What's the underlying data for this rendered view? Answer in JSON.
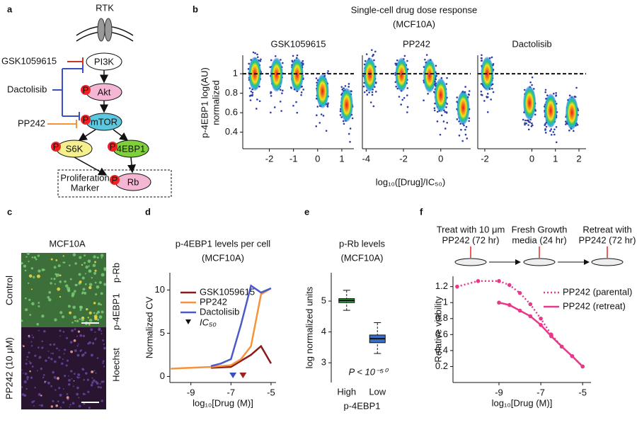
{
  "panel_labels": [
    "a",
    "b",
    "c",
    "d",
    "e",
    "f"
  ],
  "diagram": {
    "receptor": "RTK",
    "nodes": [
      "PI3K",
      "Akt",
      "mTOR",
      "S6K",
      "4EBP1",
      "Rb"
    ],
    "phospho": "P",
    "drugs": [
      "GSK1059615",
      "Dactolisib",
      "PP242"
    ],
    "marker_box": [
      "Proliferation",
      "Marker"
    ]
  },
  "microscopy": {
    "title": "MCF10A",
    "rows": [
      "Control",
      "PP242 (10 μM)"
    ],
    "channels": [
      "p-Rb",
      "p-4EBP1",
      "Hoechst"
    ]
  },
  "panel_b": {
    "title": "Single-cell drug dose response",
    "subtitle": "(MCF10A)",
    "y_label": "p-4EBP1 log(AU)",
    "y_label_2": "normalized",
    "x_label": "log₁₀([Drug]/IC₅₀)"
  },
  "schedule": {
    "steps": [
      [
        "Treat with 10 μm",
        "PP242 (72 hr)"
      ],
      [
        "Fresh Growth",
        "media (24 hr)"
      ],
      [
        "Retreat with",
        "PP242 (72 hr)"
      ]
    ]
  },
  "chart_data": [
    {
      "type": "strip",
      "title": "GSK1059615",
      "x": [
        -2.6,
        -1.7,
        -0.85,
        0.2,
        1.2
      ],
      "values": [
        1.0,
        0.99,
        0.99,
        0.82,
        0.68
      ],
      "xlim": [
        -3.1,
        1.5
      ],
      "xticks": [
        -2,
        -1,
        0,
        1
      ],
      "ylim": [
        0.23,
        1.19
      ],
      "yticks": [
        0.4,
        0.6,
        0.8,
        1
      ],
      "hline": 1
    },
    {
      "type": "strip",
      "title": "PP242",
      "x": [
        -3.8,
        -2.1,
        -0.6,
        0,
        1.2
      ],
      "values": [
        0.99,
        0.99,
        0.98,
        0.78,
        0.65
      ],
      "xlim": [
        -4.2,
        1.6
      ],
      "xticks": [
        -4,
        -2,
        0
      ],
      "ylim": [
        0.23,
        1.19
      ],
      "hline": 1
    },
    {
      "type": "strip",
      "title": "Dactolisib",
      "x": [
        -1.9,
        -0.1,
        0.8,
        1.7
      ],
      "values": [
        1.0,
        0.7,
        0.62,
        0.6
      ],
      "xlim": [
        -2.3,
        2.3
      ],
      "xticks": [
        -2,
        0,
        1,
        2
      ],
      "ylim": [
        0.23,
        1.19
      ],
      "hline": 1
    },
    {
      "type": "line",
      "title": "p-4EBP1 levels per cell",
      "subtitle": "(MCF10A)",
      "y_label": "Normalized CV",
      "x_label": "log₁₀[Drug (M)]",
      "xlim": [
        -10.05,
        -4.75
      ],
      "xticks": [
        -9,
        -7,
        -5
      ],
      "ylim": [
        -0.7,
        12
      ],
      "yticks": [
        0,
        5,
        10
      ],
      "series": [
        {
          "name": "GSK1059615",
          "color": "#8b1a1a",
          "x": [
            -8,
            -7,
            -6.5,
            -6,
            -5.5,
            -5
          ],
          "values": [
            1,
            1.1,
            1.8,
            2.5,
            3.5,
            1.5
          ]
        },
        {
          "name": "PP242",
          "color": "#f7923a",
          "x": [
            -10,
            -9,
            -8,
            -7,
            -6.5,
            -6,
            -5.5,
            -5
          ],
          "values": [
            0.9,
            1,
            1.1,
            1.3,
            2,
            3.5,
            9.5,
            10.2
          ]
        },
        {
          "name": "Dactolisib",
          "color": "#4a5bc8",
          "x": [
            -8,
            -7.5,
            -7,
            -6.5,
            -6,
            -5.5,
            -5
          ],
          "values": [
            1.2,
            1.5,
            2,
            6,
            10.5,
            9.7,
            10.2
          ]
        }
      ],
      "ic50": {
        "label": "IC₅₀",
        "values": [
          -6.9,
          -6.4
        ],
        "colors": [
          "#3a4fc0",
          "#a02020"
        ]
      }
    },
    {
      "type": "box",
      "title": "p-Rb levels",
      "subtitle": "(MCF10A)",
      "y_label": "log normalized units",
      "categories": [
        "High",
        "Low"
      ],
      "group_label": "p-4EBP1",
      "annotation": "P < 10⁻⁵⁰",
      "ylim": [
        2.36,
        5.92
      ],
      "yticks": [
        3,
        4,
        5
      ],
      "boxes": [
        {
          "min": 4.7,
          "q1": 4.95,
          "median": 5.02,
          "q3": 5.08,
          "max": 5.35,
          "color": "#2e9e3e"
        },
        {
          "min": 3.3,
          "q1": 3.65,
          "median": 3.78,
          "q3": 3.9,
          "max": 4.3,
          "color": "#3a6fc8"
        }
      ]
    },
    {
      "type": "line",
      "y_label": "Relative viability",
      "x_label": "log₁₀[Drug (M)]",
      "xlim": [
        -11.2,
        -4.6
      ],
      "xticks": [
        -9,
        -7,
        -5
      ],
      "ylim": [
        0,
        1.33
      ],
      "yticks": [
        0.2,
        0.4,
        0.6,
        0.8,
        1,
        1.2
      ],
      "markers": true,
      "series": [
        {
          "name": "PP242 (parental)",
          "color": "#e8388a",
          "dash": "dotted",
          "x": [
            -11,
            -10,
            -9,
            -8.5,
            -8,
            -7.5,
            -7,
            -6.5,
            -6,
            -5.5,
            -5
          ],
          "values": [
            1.2,
            1.27,
            1.27,
            1.22,
            1.12,
            0.98,
            0.8,
            0.6,
            0.45,
            0.33,
            0.2
          ]
        },
        {
          "name": "PP242 (retreat)",
          "color": "#e8388a",
          "dash": "solid",
          "x": [
            -9,
            -8.5,
            -8,
            -7.5,
            -7,
            -6.5,
            -6,
            -5.5,
            -5
          ],
          "values": [
            1.0,
            0.97,
            0.9,
            0.83,
            0.72,
            0.58,
            0.45,
            0.33,
            0.2
          ]
        }
      ]
    }
  ]
}
